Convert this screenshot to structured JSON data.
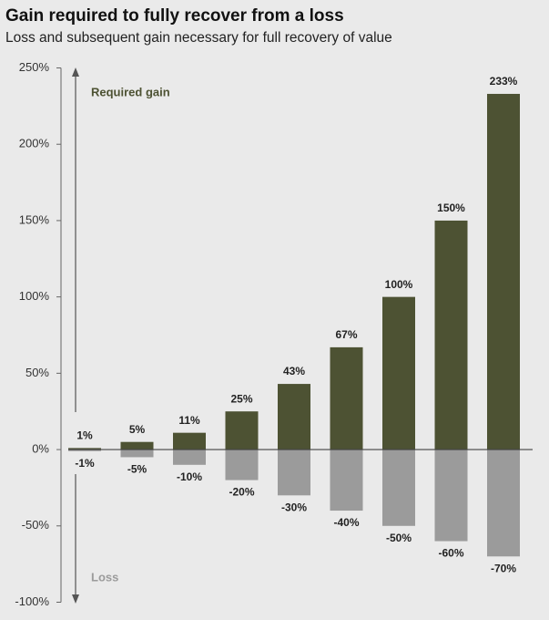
{
  "chart_data": {
    "type": "bar",
    "title": "Gain required to fully recover from a loss",
    "subtitle": "Loss and subsequent gain necessary for full recovery of value",
    "categories": [
      null,
      null,
      null,
      null,
      null,
      null,
      null,
      null,
      null
    ],
    "series": [
      {
        "name": "Required gain",
        "color": "#4d5233",
        "values": [
          1,
          5,
          11,
          25,
          43,
          67,
          100,
          150,
          233
        ],
        "value_labels": [
          "1%",
          "5%",
          "11%",
          "25%",
          "43%",
          "67%",
          "100%",
          "150%",
          "233%"
        ]
      },
      {
        "name": "Loss",
        "color": "#9b9b9b",
        "values": [
          -1,
          -5,
          -10,
          -20,
          -30,
          -40,
          -50,
          -60,
          -70
        ],
        "value_labels": [
          "-1%",
          "-5%",
          "-10%",
          "-20%",
          "-30%",
          "-40%",
          "-50%",
          "-60%",
          "-70%"
        ]
      }
    ],
    "ylim": [
      -100,
      250
    ],
    "yticks": [
      {
        "value": -100,
        "label": "-100%"
      },
      {
        "value": -50,
        "label": "-50%"
      },
      {
        "value": 0,
        "label": "0%"
      },
      {
        "value": 50,
        "label": "50%"
      },
      {
        "value": 100,
        "label": "100%"
      },
      {
        "value": 150,
        "label": "150%"
      },
      {
        "value": 200,
        "label": "200%"
      },
      {
        "value": 250,
        "label": "250%"
      }
    ]
  }
}
